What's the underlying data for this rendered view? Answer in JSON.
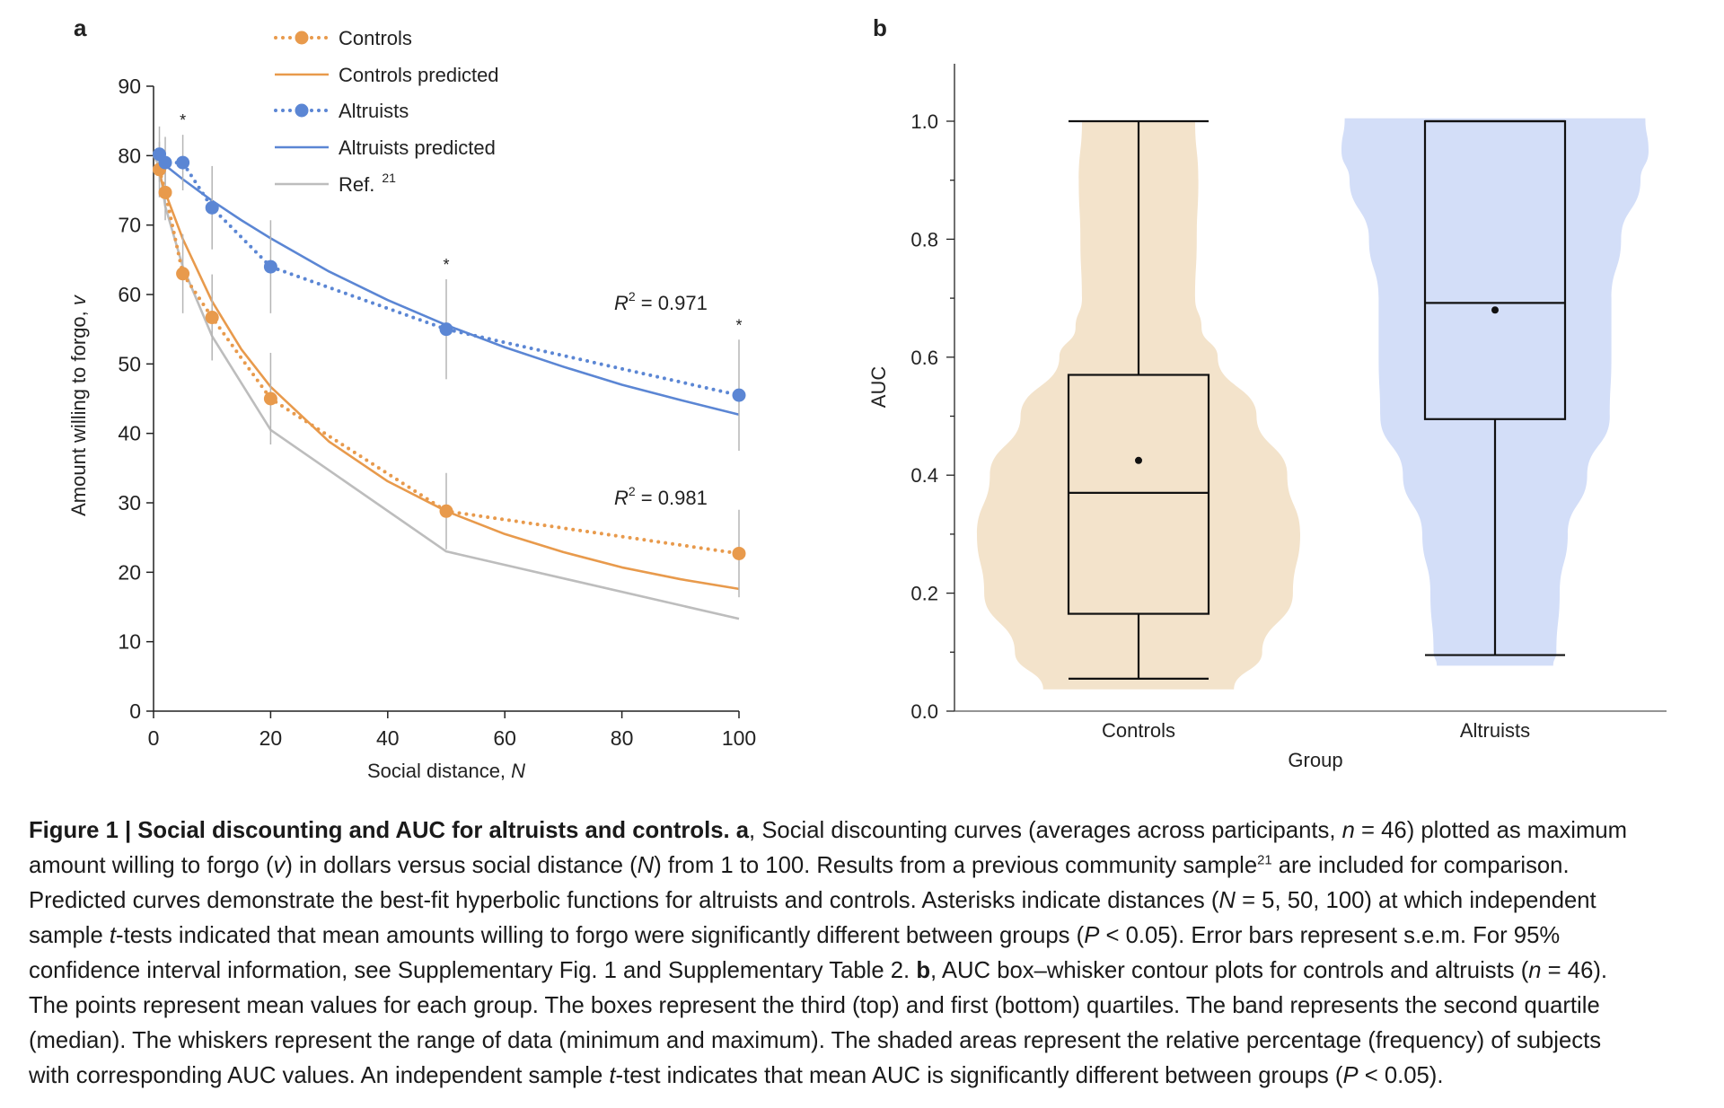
{
  "chart_data": [
    {
      "panel_label": "a",
      "type": "line",
      "xlabel": "Social distance, N",
      "ylabel": "Amount willing to forgo, v",
      "xlim": [
        0,
        100
      ],
      "ylim": [
        0,
        90
      ],
      "xticks": [
        "0",
        "20",
        "40",
        "60",
        "80",
        "100"
      ],
      "yticks": [
        "0",
        "10",
        "20",
        "30",
        "40",
        "50",
        "60",
        "70",
        "80",
        "90"
      ],
      "grid": false,
      "legend_placement": "top",
      "legend": [
        "Controls",
        "Controls predicted",
        "Altruists",
        "Altruists predicted",
        "Ref."
      ],
      "legend_ref_superscript": "21",
      "colors": {
        "controls": "#E89A4C",
        "altruists": "#5B86D4",
        "ref": "#BDBDBD"
      },
      "x": [
        1,
        2,
        5,
        10,
        20,
        50,
        100
      ],
      "series": [
        {
          "name": "Controls",
          "style": "dotted-markers",
          "color_key": "controls",
          "values": [
            78,
            74.7,
            63,
            56.7,
            45,
            28.8,
            22.7
          ],
          "sem": [
            4,
            4,
            5.7,
            6.2,
            6.6,
            5.5,
            6.3
          ]
        },
        {
          "name": "Altruists",
          "style": "dotted-markers",
          "color_key": "altruists",
          "values": [
            80.2,
            79,
            79,
            72.5,
            64,
            55,
            45.5
          ],
          "sem": [
            4,
            3.7,
            4,
            6,
            6.7,
            7.2,
            8
          ]
        },
        {
          "name": "Controls predicted",
          "style": "solid",
          "color_key": "controls",
          "x": [
            1,
            2,
            5,
            10,
            15,
            20,
            30,
            40,
            50,
            60,
            70,
            80,
            90,
            100
          ],
          "values": [
            77.3,
            74.7,
            68.0,
            59.0,
            52.1,
            46.7,
            38.8,
            33.1,
            28.8,
            25.5,
            22.9,
            20.7,
            19.0,
            17.6
          ]
        },
        {
          "name": "Altruists predicted",
          "style": "solid",
          "color_key": "altruists",
          "x": [
            1,
            2,
            5,
            10,
            15,
            20,
            30,
            40,
            50,
            60,
            70,
            80,
            90,
            100
          ],
          "values": [
            79.3,
            78.6,
            76.6,
            73.5,
            70.7,
            68.1,
            63.3,
            59.2,
            55.6,
            52.4,
            49.6,
            47.0,
            44.8,
            42.7
          ]
        },
        {
          "name": "Ref.",
          "style": "solid",
          "color_key": "ref",
          "x": [
            1,
            2,
            5,
            10,
            20,
            50,
            100
          ],
          "values": [
            78.5,
            72.7,
            64,
            54,
            40.5,
            23,
            13.3
          ]
        }
      ],
      "annotations": [
        {
          "text": "R",
          "sup": "2",
          "rest": " = 0.971",
          "near": "Altruists"
        },
        {
          "text": "R",
          "sup": "2",
          "rest": " = 0.981",
          "near": "Controls"
        }
      ],
      "significance_marker": "*",
      "significant_x": [
        5,
        50,
        100
      ]
    },
    {
      "panel_label": "b",
      "type": "violin-box",
      "xlabel": "Group",
      "ylabel": "AUC",
      "ylim": [
        0,
        1.1
      ],
      "yticks": [
        "0.0",
        "0.2",
        "0.4",
        "0.6",
        "0.8",
        "1.0"
      ],
      "categories": [
        "Controls",
        "Altruists"
      ],
      "colors": {
        "Controls": "#F3E3CB",
        "Altruists": "#D3DEF8"
      },
      "groups": [
        {
          "name": "Controls",
          "min": 0.055,
          "q1": 0.165,
          "median": 0.37,
          "q3": 0.57,
          "max": 1.0,
          "mean": 0.425,
          "density": {
            "auc": [
              0.037,
              0.1,
              0.2,
              0.3,
              0.4,
              0.5,
              0.6,
              0.65,
              0.7,
              0.8,
              0.9,
              1.0
            ],
            "relative_width": [
              0.59,
              0.765,
              0.955,
              1.0,
              0.92,
              0.73,
              0.49,
              0.39,
              0.35,
              0.36,
              0.37,
              0.35
            ]
          }
        },
        {
          "name": "Altruists",
          "min": 0.095,
          "q1": 0.495,
          "median": 0.692,
          "q3": 1.0,
          "max": 1.0,
          "mean": 0.68,
          "density": {
            "auc": [
              0.077,
              0.1,
              0.2,
              0.3,
              0.4,
              0.5,
              0.6,
              0.7,
              0.8,
              0.9,
              0.95,
              1.005
            ],
            "relative_width": [
              0.36,
              0.38,
              0.4,
              0.45,
              0.57,
              0.71,
              0.72,
              0.72,
              0.78,
              0.9,
              0.95,
              0.93
            ]
          }
        }
      ]
    }
  ],
  "caption": {
    "lines": [
      [
        {
          "t": "Figure 1 | Social discounting and AUC for altruists and controls. a",
          "s": "b"
        },
        {
          "t": ", Social discounting curves (averages across participants, "
        },
        {
          "t": "n",
          "s": "i"
        },
        {
          "t": " = 46) plotted as maximum"
        }
      ],
      [
        {
          "t": "amount willing to forgo ("
        },
        {
          "t": "v",
          "s": "i"
        },
        {
          "t": ") in dollars versus social distance ("
        },
        {
          "t": "N",
          "s": "i"
        },
        {
          "t": ") from 1 to 100. Results from a previous community sample"
        },
        {
          "t": "21",
          "s": "sup"
        },
        {
          "t": " are included for comparison."
        }
      ],
      [
        {
          "t": "Predicted curves demonstrate the best-fit hyperbolic functions for altruists and controls. Asterisks indicate distances ("
        },
        {
          "t": "N",
          "s": "i"
        },
        {
          "t": " = 5, 50, 100) at which independent"
        }
      ],
      [
        {
          "t": "sample "
        },
        {
          "t": "t",
          "s": "i"
        },
        {
          "t": "-tests indicated that mean amounts willing to forgo were significantly different between groups ("
        },
        {
          "t": "P",
          "s": "i"
        },
        {
          "t": " < 0.05). Error bars represent s.e.m. For 95%"
        }
      ],
      [
        {
          "t": "confidence interval information, see Supplementary Fig. 1 and Supplementary Table 2. "
        },
        {
          "t": "b",
          "s": "b"
        },
        {
          "t": ", AUC box–whisker contour plots for controls and altruists ("
        },
        {
          "t": "n",
          "s": "i"
        },
        {
          "t": " = 46)."
        }
      ],
      [
        {
          "t": "The points represent mean values for each group. The boxes represent the third (top) and first (bottom) quartiles. The band represents the second quartile"
        }
      ],
      [
        {
          "t": "(median). The whiskers represent the range of data (minimum and maximum). The shaded areas represent the relative percentage (frequency) of subjects"
        }
      ],
      [
        {
          "t": "with corresponding AUC values. An independent sample "
        },
        {
          "t": "t",
          "s": "i"
        },
        {
          "t": "-test indicates that mean AUC is significantly different between groups ("
        },
        {
          "t": "P",
          "s": "i"
        },
        {
          "t": " < 0.05)."
        }
      ]
    ]
  }
}
